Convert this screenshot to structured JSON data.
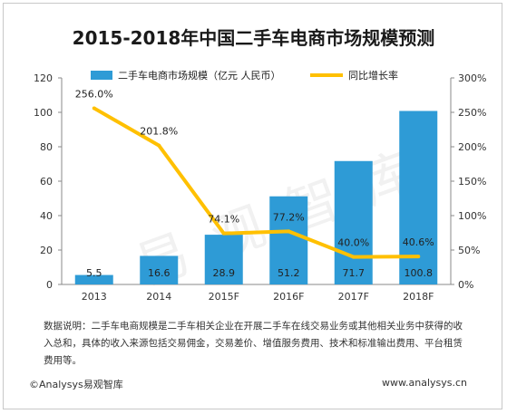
{
  "title": "2015-2018年中国二手车电商市场规模预测",
  "watermark": "易观智库",
  "note": "数据说明：二手车电商规模是二手车相关企业在开展二手车在线交易业务或其他相关业务中获得的收入总和，具体的收入来源包括交易佣金，交易差价、增值服务费用、技术和标准输出费用、平台租赁费用等。",
  "footer": {
    "brand": "©Analysys易观智库",
    "url": "www.analysys.cn"
  },
  "colors": {
    "bar": "#2e9bd6",
    "line": "#ffc000"
  },
  "chart_data": {
    "type": "bar",
    "categories": [
      "2013",
      "2014",
      "2015F",
      "2016F",
      "2017F",
      "2018F"
    ],
    "series": [
      {
        "name": "二手车电商市场规模（亿元 人民币）",
        "type": "bar",
        "axis": "left",
        "values": [
          5.5,
          16.6,
          28.9,
          51.2,
          71.7,
          100.8
        ],
        "labels": [
          "5.5",
          "16.6",
          "28.9",
          "51.2",
          "71.7",
          "100.8"
        ]
      },
      {
        "name": "同比增长率",
        "type": "line",
        "axis": "right",
        "values": [
          256.0,
          201.8,
          74.1,
          77.2,
          40.0,
          40.6
        ],
        "labels": [
          "256.0%",
          "201.8%",
          "74.1%",
          "77.2%",
          "40.0%",
          "40.6%"
        ]
      }
    ],
    "y_left": {
      "min": 0,
      "max": 120,
      "ticks": [
        "0",
        "20",
        "40",
        "60",
        "80",
        "100",
        "120"
      ]
    },
    "y_right": {
      "min": 0,
      "max": 300,
      "ticks": [
        "0%",
        "50%",
        "100%",
        "150%",
        "200%",
        "250%",
        "300%"
      ]
    },
    "grid": false,
    "legend": "top"
  }
}
